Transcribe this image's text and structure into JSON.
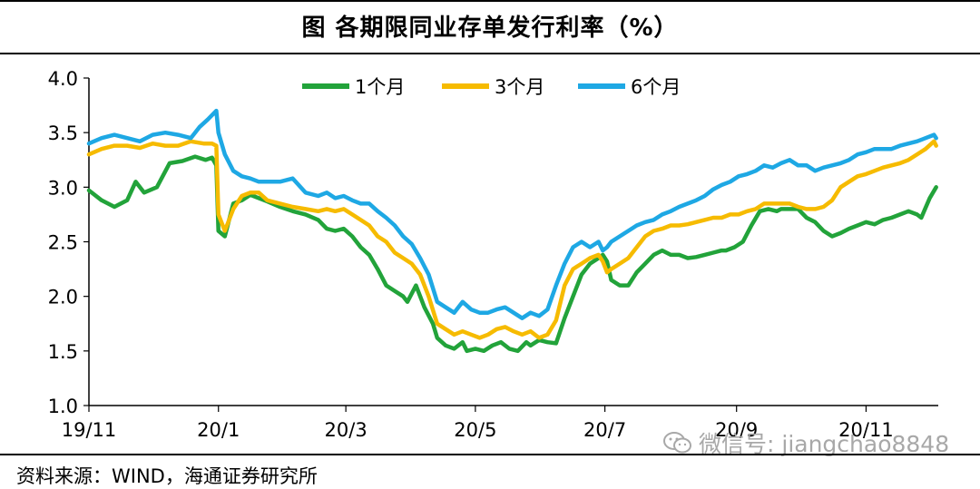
{
  "header": {
    "title": "图  各期限同业存单发行利率（%）"
  },
  "footer": {
    "source": "资料来源：WIND，海通证券研究所"
  },
  "watermark": {
    "text": "微信号: jiangchao8848",
    "icon": "wechat-icon"
  },
  "colors": {
    "s1": "#22a33a",
    "s3": "#f6bb00",
    "s6": "#1ea8e4",
    "axis": "#000000"
  },
  "chart_data": {
    "type": "line",
    "title": "",
    "xlabel": "",
    "ylabel": "",
    "ylim": [
      1.0,
      4.0
    ],
    "yticks": [
      "1.0",
      "1.5",
      "2.0",
      "2.5",
      "3.0",
      "3.5",
      "4.0"
    ],
    "xlim": [
      0,
      400
    ],
    "xticks": [
      {
        "label": "19/11",
        "x": 0
      },
      {
        "label": "20/1",
        "x": 61
      },
      {
        "label": "20/3",
        "x": 121
      },
      {
        "label": "20/5",
        "x": 182
      },
      {
        "label": "20/7",
        "x": 243
      },
      {
        "label": "20/9",
        "x": 305
      },
      {
        "label": "20/11",
        "x": 366
      }
    ],
    "legend_position": "top",
    "grid": false,
    "series": [
      {
        "name": "1个月",
        "color": "#22a33a",
        "x": [
          0,
          6,
          12,
          18,
          22,
          26,
          32,
          38,
          44,
          50,
          55,
          58,
          60,
          61,
          64,
          68,
          72,
          76,
          80,
          84,
          90,
          96,
          102,
          108,
          112,
          116,
          120,
          124,
          128,
          132,
          136,
          140,
          144,
          148,
          150,
          154,
          158,
          162,
          164,
          168,
          172,
          176,
          178,
          182,
          186,
          190,
          194,
          198,
          202,
          206,
          208,
          212,
          216,
          220,
          224,
          228,
          232,
          236,
          240,
          242,
          244,
          246,
          250,
          254,
          258,
          262,
          266,
          270,
          274,
          278,
          282,
          286,
          290,
          294,
          298,
          300,
          304,
          308,
          312,
          316,
          320,
          324,
          326,
          330,
          334,
          338,
          342,
          346,
          350,
          354,
          358,
          362,
          366,
          370,
          374,
          378,
          382,
          386,
          390,
          392,
          396,
          399
        ],
        "y": [
          2.97,
          2.88,
          2.82,
          2.88,
          3.05,
          2.95,
          3.0,
          3.22,
          3.24,
          3.28,
          3.25,
          3.27,
          3.2,
          2.6,
          2.55,
          2.85,
          2.88,
          2.93,
          2.9,
          2.87,
          2.82,
          2.78,
          2.75,
          2.7,
          2.62,
          2.6,
          2.62,
          2.55,
          2.45,
          2.38,
          2.25,
          2.1,
          2.05,
          2.0,
          1.95,
          2.1,
          1.9,
          1.75,
          1.62,
          1.55,
          1.52,
          1.58,
          1.5,
          1.52,
          1.5,
          1.55,
          1.58,
          1.52,
          1.5,
          1.58,
          1.55,
          1.6,
          1.58,
          1.57,
          1.8,
          2.0,
          2.2,
          2.3,
          2.35,
          2.38,
          2.32,
          2.15,
          2.1,
          2.1,
          2.22,
          2.3,
          2.38,
          2.42,
          2.38,
          2.38,
          2.35,
          2.36,
          2.38,
          2.4,
          2.42,
          2.42,
          2.45,
          2.5,
          2.65,
          2.78,
          2.8,
          2.78,
          2.8,
          2.8,
          2.8,
          2.72,
          2.68,
          2.6,
          2.55,
          2.58,
          2.62,
          2.65,
          2.68,
          2.66,
          2.7,
          2.72,
          2.75,
          2.78,
          2.75,
          2.72,
          2.9,
          3.0
        ]
      },
      {
        "name": "3个月",
        "color": "#f6bb00",
        "x": [
          0,
          6,
          12,
          18,
          24,
          30,
          36,
          42,
          48,
          54,
          58,
          60,
          61,
          64,
          68,
          72,
          76,
          80,
          84,
          90,
          96,
          102,
          108,
          112,
          116,
          120,
          124,
          128,
          132,
          136,
          140,
          144,
          148,
          152,
          156,
          160,
          164,
          168,
          172,
          176,
          180,
          184,
          188,
          192,
          196,
          200,
          204,
          208,
          212,
          216,
          220,
          224,
          228,
          232,
          236,
          240,
          242,
          244,
          246,
          250,
          254,
          258,
          262,
          266,
          270,
          274,
          278,
          282,
          286,
          290,
          294,
          298,
          302,
          306,
          310,
          314,
          318,
          322,
          326,
          330,
          334,
          338,
          342,
          346,
          350,
          354,
          358,
          362,
          366,
          370,
          374,
          378,
          382,
          386,
          390,
          394,
          398,
          399
        ],
        "y": [
          3.3,
          3.35,
          3.38,
          3.38,
          3.36,
          3.4,
          3.38,
          3.38,
          3.42,
          3.4,
          3.4,
          3.38,
          2.75,
          2.6,
          2.8,
          2.92,
          2.95,
          2.95,
          2.88,
          2.85,
          2.82,
          2.8,
          2.78,
          2.8,
          2.78,
          2.8,
          2.75,
          2.7,
          2.65,
          2.55,
          2.5,
          2.4,
          2.35,
          2.3,
          2.2,
          2.0,
          1.75,
          1.7,
          1.65,
          1.68,
          1.65,
          1.62,
          1.65,
          1.7,
          1.72,
          1.68,
          1.65,
          1.68,
          1.62,
          1.65,
          1.78,
          2.1,
          2.25,
          2.3,
          2.35,
          2.38,
          2.32,
          2.22,
          2.25,
          2.3,
          2.35,
          2.45,
          2.55,
          2.6,
          2.62,
          2.65,
          2.65,
          2.66,
          2.68,
          2.7,
          2.72,
          2.72,
          2.75,
          2.75,
          2.78,
          2.8,
          2.85,
          2.85,
          2.85,
          2.85,
          2.82,
          2.8,
          2.8,
          2.82,
          2.88,
          3.0,
          3.05,
          3.1,
          3.12,
          3.15,
          3.18,
          3.2,
          3.22,
          3.25,
          3.3,
          3.35,
          3.42,
          3.38
        ]
      },
      {
        "name": "6个月",
        "color": "#1ea8e4",
        "x": [
          0,
          6,
          12,
          18,
          24,
          30,
          36,
          42,
          48,
          52,
          56,
          60,
          61,
          64,
          68,
          72,
          76,
          80,
          84,
          90,
          96,
          102,
          108,
          112,
          116,
          120,
          124,
          128,
          132,
          136,
          140,
          144,
          148,
          152,
          156,
          160,
          164,
          168,
          172,
          176,
          180,
          184,
          188,
          192,
          196,
          200,
          204,
          208,
          212,
          216,
          220,
          224,
          228,
          232,
          236,
          240,
          242,
          244,
          246,
          250,
          254,
          258,
          262,
          266,
          270,
          274,
          278,
          282,
          286,
          290,
          294,
          298,
          302,
          306,
          310,
          314,
          318,
          322,
          326,
          330,
          334,
          338,
          342,
          346,
          350,
          354,
          358,
          362,
          366,
          370,
          374,
          378,
          382,
          386,
          390,
          394,
          398,
          399
        ],
        "y": [
          3.4,
          3.45,
          3.48,
          3.45,
          3.42,
          3.48,
          3.5,
          3.48,
          3.45,
          3.55,
          3.62,
          3.7,
          3.5,
          3.3,
          3.15,
          3.1,
          3.08,
          3.05,
          3.05,
          3.05,
          3.08,
          2.95,
          2.92,
          2.95,
          2.9,
          2.92,
          2.88,
          2.85,
          2.85,
          2.78,
          2.72,
          2.65,
          2.55,
          2.48,
          2.35,
          2.2,
          1.95,
          1.9,
          1.85,
          1.95,
          1.88,
          1.85,
          1.85,
          1.88,
          1.9,
          1.85,
          1.8,
          1.85,
          1.82,
          1.88,
          2.1,
          2.3,
          2.45,
          2.5,
          2.45,
          2.5,
          2.42,
          2.45,
          2.5,
          2.55,
          2.6,
          2.65,
          2.68,
          2.7,
          2.75,
          2.78,
          2.82,
          2.85,
          2.88,
          2.92,
          2.98,
          3.02,
          3.05,
          3.1,
          3.12,
          3.15,
          3.2,
          3.18,
          3.22,
          3.25,
          3.2,
          3.2,
          3.15,
          3.18,
          3.2,
          3.22,
          3.25,
          3.3,
          3.32,
          3.35,
          3.35,
          3.35,
          3.38,
          3.4,
          3.42,
          3.45,
          3.48,
          3.45
        ]
      }
    ]
  }
}
